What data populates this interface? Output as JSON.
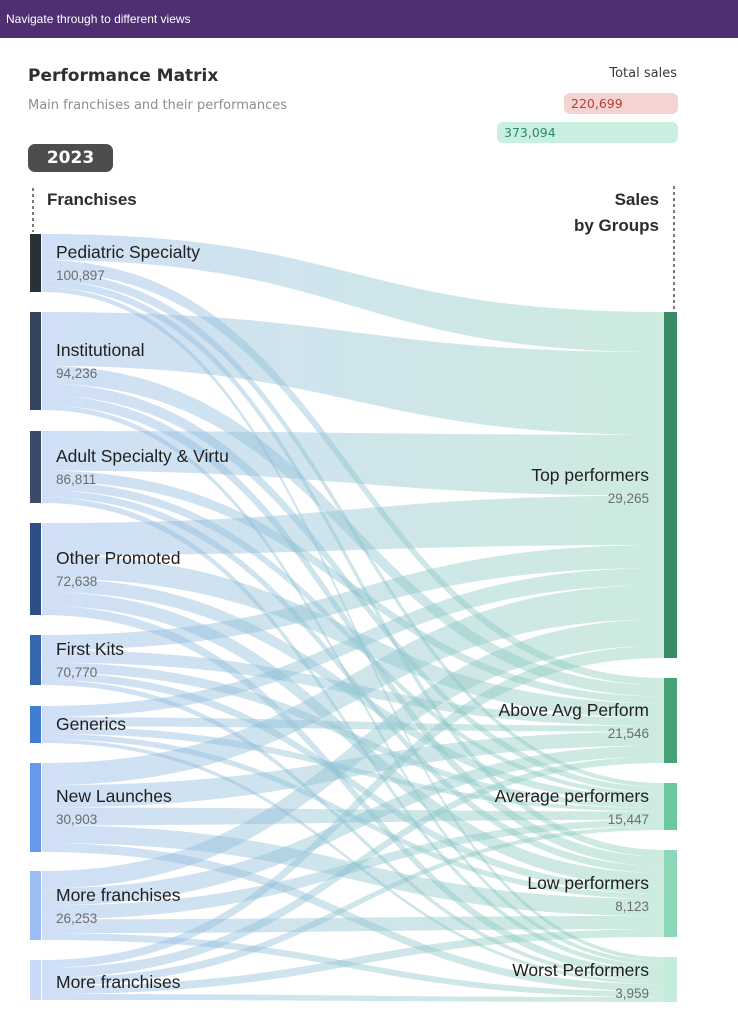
{
  "topbar": {
    "text": "Navigate through to different views"
  },
  "header": {
    "title": "Performance Matrix",
    "subtitle": "Main franchises and their performances",
    "total_label": "Total sales",
    "totals": [
      "220,699",
      "373,094"
    ]
  },
  "year_button": "2023",
  "colors": {
    "topbar": "#4f2e72",
    "link_source": "#8fb3ea",
    "link_target": "#88cfb3",
    "target_node": "#3c8f68",
    "total_red": "#f5d3d1",
    "total_green": "#c9efe0"
  },
  "chart_data": {
    "type": "sankey",
    "left_header": "Franchises",
    "right_header_line1": "Sales",
    "right_header_line2": "by Groups",
    "sources": [
      {
        "name": "Pediatric Specialty",
        "value": "100,897",
        "color": "#263238"
      },
      {
        "name": "Institutional",
        "value": "94,236",
        "color": "#34435e"
      },
      {
        "name": "Adult Specialty & Virtu",
        "value": "86,811",
        "color": "#3a4a6b"
      },
      {
        "name": "Other Promoted",
        "value": "72,638",
        "color": "#2d4f86"
      },
      {
        "name": "First Kits",
        "value": "70,770",
        "color": "#3467ad"
      },
      {
        "name": "Generics",
        "value": "",
        "color": "#3f7ed0"
      },
      {
        "name": "New Launches",
        "value": "30,903",
        "color": "#6499ec"
      },
      {
        "name": "More franchises",
        "value": "26,253",
        "color": "#9dbef3"
      },
      {
        "name": "More franchises",
        "value": "",
        "color": "#c8daf8"
      }
    ],
    "targets": [
      {
        "name": "Top performers",
        "value": "29,265",
        "color": "#3a8a65"
      },
      {
        "name": "Above Avg Perform",
        "value": "21,546",
        "color": "#46a276"
      },
      {
        "name": "Average performers",
        "value": "15,447",
        "color": "#6cc89f"
      },
      {
        "name": "Low performers",
        "value": "8,123",
        "color": "#8dd8b8"
      },
      {
        "name": "Worst Performers",
        "value": "3,959",
        "color": "#c3ecdb"
      }
    ]
  }
}
